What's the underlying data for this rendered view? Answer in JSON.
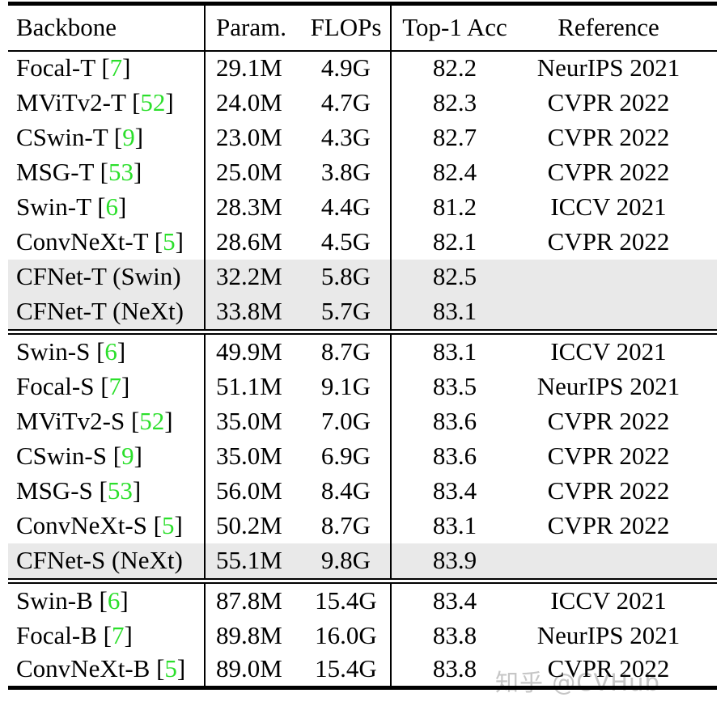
{
  "colors": {
    "citation_green": "#2BDF2B",
    "highlight_gray": "#E9E9E9",
    "rule_black": "#000000",
    "watermark_gray": "#C6C6C6"
  },
  "watermark": {
    "text": "知乎 @CVHub"
  },
  "table": {
    "header": {
      "backbone": "Backbone",
      "param": "Param.",
      "flops": "FLOPs",
      "top1": "Top-1 Acc",
      "reference": "Reference"
    },
    "citation_brackets": {
      "open": "[",
      "close": "]"
    },
    "sections": [
      {
        "rows": [
          {
            "name": "Focal-T",
            "cite": "7",
            "param": "29.1M",
            "flops": "4.9G",
            "top1": "82.2",
            "reference": "NeurIPS 2021",
            "highlight": false
          },
          {
            "name": "MViTv2-T",
            "cite": "52",
            "param": "24.0M",
            "flops": "4.7G",
            "top1": "82.3",
            "reference": "CVPR 2022",
            "highlight": false
          },
          {
            "name": "CSwin-T",
            "cite": "9",
            "param": "23.0M",
            "flops": "4.3G",
            "top1": "82.7",
            "reference": "CVPR 2022",
            "highlight": false
          },
          {
            "name": "MSG-T",
            "cite": "53",
            "param": "25.0M",
            "flops": "3.8G",
            "top1": "82.4",
            "reference": "CVPR 2022",
            "highlight": false
          },
          {
            "name": "Swin-T",
            "cite": "6",
            "param": "28.3M",
            "flops": "4.4G",
            "top1": "81.2",
            "reference": "ICCV 2021",
            "highlight": false
          },
          {
            "name": "ConvNeXt-T",
            "cite": "5",
            "param": "28.6M",
            "flops": "4.5G",
            "top1": "82.1",
            "reference": "CVPR 2022",
            "highlight": false
          },
          {
            "name": "CFNet-T (Swin)",
            "cite": null,
            "param": "32.2M",
            "flops": "5.8G",
            "top1": "82.5",
            "reference": "",
            "highlight": true
          },
          {
            "name": "CFNet-T (NeXt)",
            "cite": null,
            "param": "33.8M",
            "flops": "5.7G",
            "top1": "83.1",
            "reference": "",
            "highlight": true
          }
        ]
      },
      {
        "rows": [
          {
            "name": "Swin-S",
            "cite": "6",
            "param": "49.9M",
            "flops": "8.7G",
            "top1": "83.1",
            "reference": "ICCV 2021",
            "highlight": false
          },
          {
            "name": "Focal-S",
            "cite": "7",
            "param": "51.1M",
            "flops": "9.1G",
            "top1": "83.5",
            "reference": "NeurIPS 2021",
            "highlight": false
          },
          {
            "name": "MViTv2-S",
            "cite": "52",
            "param": "35.0M",
            "flops": "7.0G",
            "top1": "83.6",
            "reference": "CVPR 2022",
            "highlight": false
          },
          {
            "name": "CSwin-S",
            "cite": "9",
            "param": "35.0M",
            "flops": "6.9G",
            "top1": "83.6",
            "reference": "CVPR 2022",
            "highlight": false
          },
          {
            "name": "MSG-S",
            "cite": "53",
            "param": "56.0M",
            "flops": "8.4G",
            "top1": "83.4",
            "reference": "CVPR 2022",
            "highlight": false
          },
          {
            "name": "ConvNeXt-S",
            "cite": "5",
            "param": "50.2M",
            "flops": "8.7G",
            "top1": "83.1",
            "reference": "CVPR 2022",
            "highlight": false
          },
          {
            "name": "CFNet-S (NeXt)",
            "cite": null,
            "param": "55.1M",
            "flops": "9.8G",
            "top1": "83.9",
            "reference": "",
            "highlight": true
          }
        ]
      },
      {
        "rows": [
          {
            "name": "Swin-B",
            "cite": "6",
            "param": "87.8M",
            "flops": "15.4G",
            "top1": "83.4",
            "reference": "ICCV 2021",
            "highlight": false
          },
          {
            "name": "Focal-B",
            "cite": "7",
            "param": "89.8M",
            "flops": "16.0G",
            "top1": "83.8",
            "reference": "NeurIPS 2021",
            "highlight": false
          },
          {
            "name": "ConvNeXt-B",
            "cite": "5",
            "param": "89.0M",
            "flops": "15.4G",
            "top1": "83.8",
            "reference": "CVPR 2022",
            "highlight": false
          }
        ]
      }
    ]
  }
}
